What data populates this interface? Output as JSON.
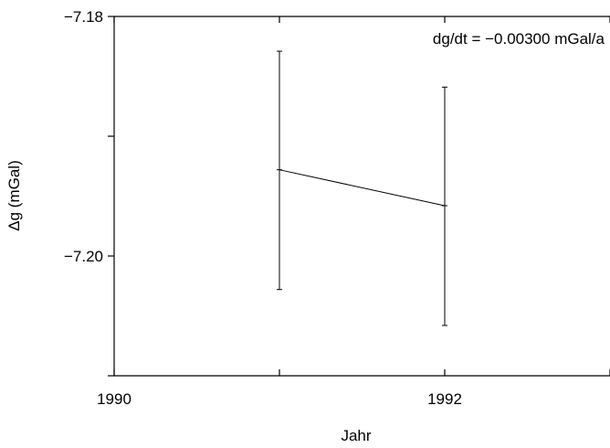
{
  "chart_data": {
    "type": "line",
    "xlabel": "Jahr",
    "ylabel": "Δg (mGal)",
    "xlim": [
      1990,
      1993
    ],
    "ylim": [
      -7.21,
      -7.18
    ],
    "x_ticks": [
      1990,
      1991,
      1992,
      1993
    ],
    "x_tick_labels": [
      {
        "value": 1990,
        "label": "1990"
      },
      {
        "value": 1992,
        "label": "1992"
      }
    ],
    "y_ticks": [
      -7.18,
      -7.19,
      -7.2,
      -7.21
    ],
    "y_tick_labels": [
      {
        "value": -7.18,
        "label": "−7.18"
      },
      {
        "value": -7.2,
        "label": "−7.20"
      }
    ],
    "annotation": "dg/dt = −0.00300 mGal/a",
    "series": [
      {
        "x": [
          1991,
          1992
        ],
        "y": [
          -7.1928,
          -7.1958
        ],
        "error_low": [
          -7.2028,
          -7.2058
        ],
        "error_high": [
          -7.1829,
          -7.1859
        ]
      }
    ],
    "grid": false,
    "color": "#000000"
  }
}
